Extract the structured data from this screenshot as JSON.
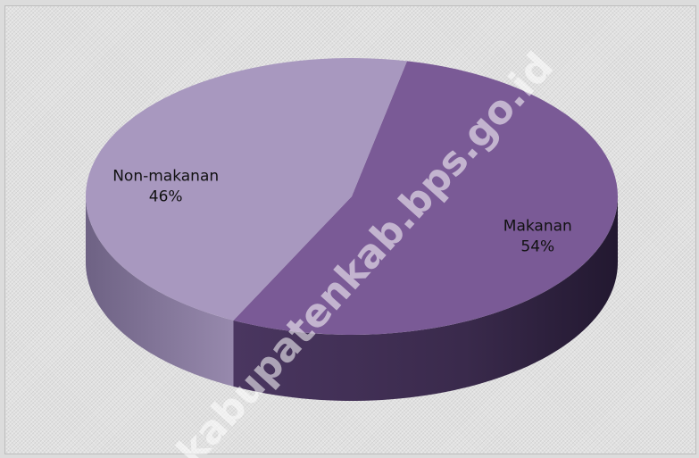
{
  "chart_data": {
    "type": "pie",
    "title": "",
    "slices": [
      {
        "name": "Makanan",
        "value": 54,
        "label": "54%",
        "color": "#7a5a96",
        "side_color": "#3f2e52"
      },
      {
        "name": "Non-makanan",
        "value": 46,
        "label": "46%",
        "color": "#a898bf",
        "side_color": "#7e6f93"
      }
    ],
    "three_d": true,
    "legend": "none",
    "watermark": "kabupatenkab.bps.go.id"
  }
}
